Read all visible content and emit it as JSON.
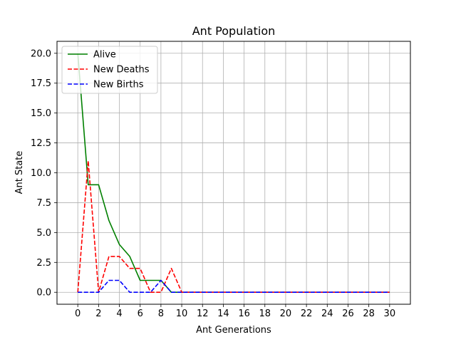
{
  "chart_data": {
    "type": "line",
    "title": "Ant Population",
    "xlabel": "Ant Generations",
    "ylabel": "Ant State",
    "xlim": [
      -2,
      32
    ],
    "ylim": [
      -1,
      21
    ],
    "xticks": [
      0,
      2,
      4,
      6,
      8,
      10,
      12,
      14,
      16,
      18,
      20,
      22,
      24,
      26,
      28,
      30
    ],
    "xtick_labels": [
      "0",
      "2",
      "4",
      "6",
      "8",
      "10",
      "12",
      "14",
      "16",
      "18",
      "20",
      "22",
      "24",
      "26",
      "28",
      "30"
    ],
    "yticks": [
      0,
      2.5,
      5,
      7.5,
      10,
      12.5,
      15,
      17.5,
      20
    ],
    "ytick_labels": [
      "0.0",
      "2.5",
      "5.0",
      "7.5",
      "10.0",
      "12.5",
      "15.0",
      "17.5",
      "20.0"
    ],
    "grid": true,
    "legend_position": "top-left",
    "x": [
      0,
      1,
      2,
      3,
      4,
      5,
      6,
      7,
      8,
      9,
      10,
      11,
      12,
      13,
      14,
      15,
      16,
      17,
      18,
      19,
      20,
      21,
      22,
      23,
      24,
      25,
      26,
      27,
      28,
      29,
      30
    ],
    "series": [
      {
        "name": "Alive",
        "color": "#008000",
        "dash": "solid",
        "values": [
          20,
          9,
          9,
          6,
          4,
          3,
          1,
          1,
          1,
          0,
          0,
          0,
          0,
          0,
          0,
          0,
          0,
          0,
          0,
          0,
          0,
          0,
          0,
          0,
          0,
          0,
          0,
          0,
          0,
          0,
          0
        ]
      },
      {
        "name": "New Deaths",
        "color": "#ff0000",
        "dash": "dashed",
        "values": [
          0,
          11,
          0,
          3,
          3,
          2,
          2,
          0,
          0,
          2,
          0,
          0,
          0,
          0,
          0,
          0,
          0,
          0,
          0,
          0,
          0,
          0,
          0,
          0,
          0,
          0,
          0,
          0,
          0,
          0,
          0
        ]
      },
      {
        "name": "New Births",
        "color": "#0000ff",
        "dash": "dashed",
        "values": [
          0,
          0,
          0,
          1,
          1,
          0,
          0,
          0,
          1,
          0,
          0,
          0,
          0,
          0,
          0,
          0,
          0,
          0,
          0,
          0,
          0,
          0,
          0,
          0,
          0,
          0,
          0,
          0,
          0,
          0,
          0
        ]
      }
    ]
  }
}
